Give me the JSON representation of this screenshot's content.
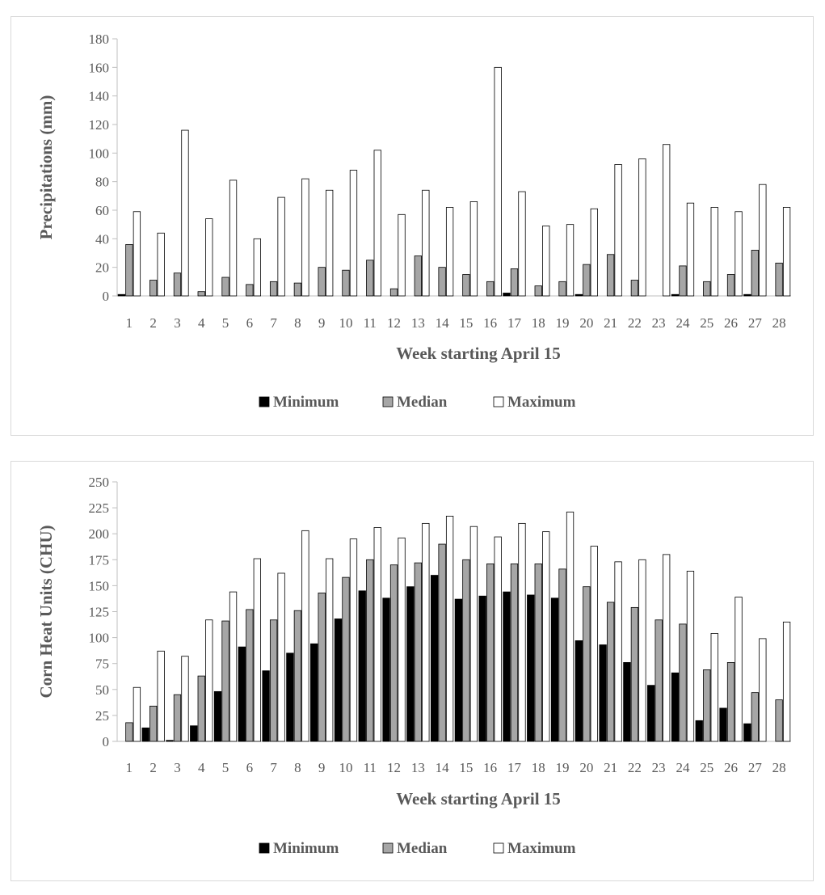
{
  "chart_data": [
    {
      "type": "bar",
      "title": "",
      "xlabel": "Week starting April 15",
      "ylabel": "Precipitations (mm)",
      "ylim": [
        0,
        180
      ],
      "yticks": [
        "0",
        "20",
        "40",
        "60",
        "80",
        "100",
        "120",
        "140",
        "160",
        "180"
      ],
      "categories": [
        "1",
        "2",
        "3",
        "4",
        "5",
        "6",
        "7",
        "8",
        "9",
        "10",
        "11",
        "12",
        "13",
        "14",
        "15",
        "16",
        "17",
        "18",
        "19",
        "20",
        "21",
        "22",
        "23",
        "24",
        "25",
        "26",
        "27",
        "28"
      ],
      "series": [
        {
          "name": "Minimum",
          "color": "#000000",
          "values": [
            1,
            0,
            0,
            0,
            0,
            0,
            0,
            0,
            0,
            0,
            0,
            0,
            0,
            0,
            0,
            0,
            2,
            0,
            0,
            1,
            0,
            0,
            0,
            1,
            0,
            0,
            1,
            0
          ]
        },
        {
          "name": "Median",
          "color": "#a6a6a6",
          "values": [
            36,
            11,
            16,
            3,
            13,
            8,
            10,
            9,
            20,
            18,
            25,
            5,
            28,
            20,
            15,
            10,
            19,
            7,
            10,
            22,
            29,
            11,
            0,
            21,
            10,
            15,
            32,
            23
          ]
        },
        {
          "name": "Maximum",
          "color": "#ffffff",
          "values": [
            59,
            44,
            116,
            54,
            81,
            40,
            69,
            82,
            74,
            88,
            102,
            57,
            74,
            62,
            66,
            160,
            73,
            49,
            50,
            61,
            92,
            96,
            106,
            65,
            62,
            59,
            78,
            62
          ]
        }
      ],
      "legend_position": "bottom"
    },
    {
      "type": "bar",
      "title": "",
      "xlabel": "Week starting April 15",
      "ylabel": "Corn Heat Units (CHU)",
      "ylim": [
        0,
        250
      ],
      "yticks": [
        "0",
        "25",
        "50",
        "75",
        "100",
        "125",
        "150",
        "175",
        "200",
        "225",
        "250"
      ],
      "categories": [
        "1",
        "2",
        "3",
        "4",
        "5",
        "6",
        "7",
        "8",
        "9",
        "10",
        "11",
        "12",
        "13",
        "14",
        "15",
        "16",
        "17",
        "18",
        "19",
        "20",
        "21",
        "22",
        "23",
        "24",
        "25",
        "26",
        "27",
        "28"
      ],
      "series": [
        {
          "name": "Minimum",
          "color": "#000000",
          "values": [
            0,
            13,
            1,
            15,
            48,
            91,
            68,
            85,
            94,
            118,
            145,
            138,
            149,
            160,
            137,
            140,
            144,
            141,
            138,
            97,
            93,
            76,
            54,
            66,
            20,
            32,
            17,
            0
          ]
        },
        {
          "name": "Median",
          "color": "#a6a6a6",
          "values": [
            18,
            34,
            45,
            63,
            116,
            127,
            117,
            126,
            143,
            158,
            175,
            170,
            172,
            190,
            175,
            171,
            171,
            171,
            166,
            149,
            134,
            129,
            117,
            113,
            69,
            76,
            47,
            40
          ]
        },
        {
          "name": "Maximum",
          "color": "#ffffff",
          "values": [
            52,
            87,
            82,
            117,
            144,
            176,
            162,
            203,
            176,
            195,
            206,
            196,
            210,
            217,
            207,
            197,
            210,
            202,
            221,
            188,
            173,
            175,
            180,
            164,
            104,
            139,
            99,
            115
          ]
        }
      ],
      "legend_position": "bottom"
    }
  ]
}
